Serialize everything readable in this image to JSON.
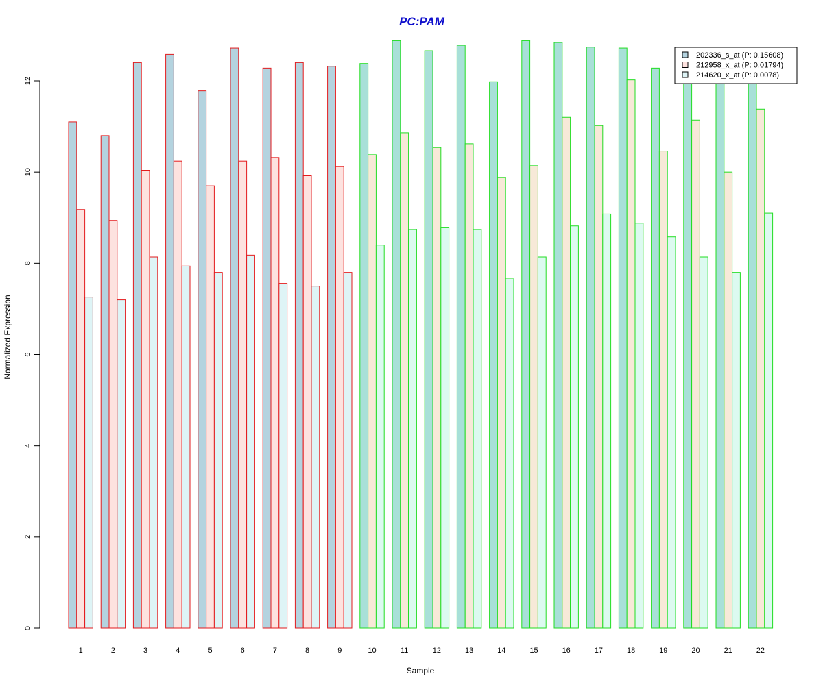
{
  "chart_data": {
    "type": "bar",
    "title": "PC:PAM",
    "xlabel": "Sample",
    "ylabel": "Normalized Expression",
    "ylim": [
      0,
      13
    ],
    "yticks": [
      0,
      2,
      4,
      6,
      8,
      10,
      12
    ],
    "categories": [
      "1",
      "2",
      "3",
      "4",
      "5",
      "6",
      "7",
      "8",
      "9",
      "10",
      "11",
      "12",
      "13",
      "14",
      "15",
      "16",
      "17",
      "18",
      "19",
      "20",
      "21",
      "22"
    ],
    "groups": [
      {
        "samples": [
          "1",
          "2",
          "3",
          "4",
          "5",
          "6",
          "7",
          "8",
          "9"
        ],
        "outline_color": "#e31a1c"
      },
      {
        "samples": [
          "10",
          "11",
          "12",
          "13",
          "14",
          "15",
          "16",
          "17",
          "18",
          "19",
          "20",
          "21",
          "22"
        ],
        "outline_color": "#22dd22"
      }
    ],
    "series": [
      {
        "name": "202336_s_at (P: 0.15608)",
        "colors": {
          "group1": "#b4d3df",
          "group2": "#a8e0d8"
        },
        "values": [
          11.1,
          10.8,
          12.4,
          12.58,
          11.78,
          12.72,
          12.28,
          12.4,
          12.32,
          12.38,
          12.88,
          12.66,
          12.78,
          11.98,
          12.88,
          12.84,
          12.74,
          12.72,
          12.28,
          12.26,
          12.26,
          12.36
        ]
      },
      {
        "name": "212958_x_at (P: 0.01794)",
        "colors": {
          "group1": "#fde2df",
          "group2": "#f7e9d8"
        },
        "values": [
          9.18,
          8.94,
          10.04,
          10.24,
          9.7,
          10.24,
          10.32,
          9.92,
          10.12,
          10.38,
          10.86,
          10.54,
          10.62,
          9.88,
          10.14,
          11.2,
          11.02,
          12.02,
          10.46,
          11.14,
          10.0,
          11.38
        ]
      },
      {
        "name": "214620_x_at (P: 0.0078)",
        "colors": {
          "group1": "#def4f6",
          "group2": "#dcfaf0"
        },
        "values": [
          7.26,
          7.2,
          8.14,
          7.94,
          7.8,
          8.18,
          7.56,
          7.5,
          7.8,
          8.4,
          8.74,
          8.78,
          8.74,
          7.66,
          8.14,
          8.82,
          9.08,
          8.88,
          8.58,
          8.14,
          7.8,
          9.1
        ]
      }
    ],
    "legend_position": "top-right",
    "legend_fill_colors": [
      "#b4d3df",
      "#fde2df",
      "#def4f6"
    ],
    "title_color": "#1010cc",
    "grid": false
  }
}
